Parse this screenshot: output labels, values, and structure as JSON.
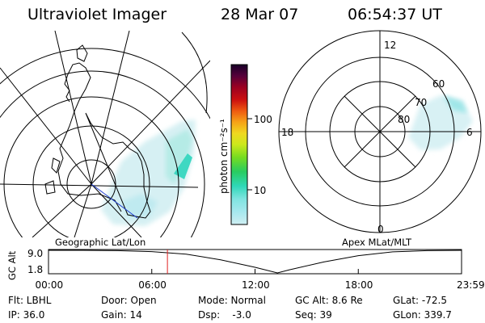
{
  "header": {
    "instrument": "Ultraviolet Imager",
    "date": "28 Mar 07",
    "time": "06:54:37 UT"
  },
  "left_panel": {
    "caption": "Geographic Lat/Lon"
  },
  "right_panel": {
    "caption": "Apex MLat/MLT",
    "mlt_labels": {
      "top": "12",
      "left": "18",
      "right": "6",
      "bottom": "0"
    },
    "lat_labels": [
      "60",
      "70",
      "80"
    ]
  },
  "colorbar": {
    "unit_label": "photon cm⁻²s⁻¹",
    "tick_labels": [
      "100",
      "10"
    ],
    "tick_values": [
      100,
      10
    ],
    "scale": "log",
    "colors": [
      "#cfeef2",
      "#7fe4e0",
      "#2fd8b8",
      "#28cc60",
      "#76dc20",
      "#cce81c",
      "#f0d820",
      "#f6a218",
      "#ee5a10",
      "#cc1010",
      "#9a0022",
      "#55003a",
      "#180028"
    ]
  },
  "altitude_chart": {
    "axis_label": "GC Alt",
    "y_ticks": [
      "9.0",
      "1.8"
    ],
    "y_min": 1.8,
    "y_max": 9.0,
    "x_ticks": [
      "00:00",
      "06:00",
      "12:00",
      "18:00",
      "23:59"
    ],
    "x_tick_hours": [
      0,
      6,
      12,
      18,
      24
    ],
    "current_hour": 6.91,
    "curve_hours": [
      0,
      2,
      4,
      6,
      8,
      10,
      12,
      13.3,
      14,
      16,
      18,
      20,
      22,
      24
    ],
    "curve_alt": [
      9.0,
      9.0,
      8.9,
      8.6,
      7.8,
      6.0,
      3.6,
      1.8,
      2.8,
      5.3,
      7.3,
      8.5,
      8.9,
      9.0
    ]
  },
  "info": {
    "flt": "Flt: LBHL",
    "ip": "IP: 36.0",
    "door": "Door: Open",
    "gain": "Gain: 14",
    "mode": "Mode: Normal",
    "dsp": "Dsp:    -3.0",
    "gc_alt": "GC Alt: 8.6 Re",
    "seq": "Seq: 39",
    "glat": "GLat: -72.5",
    "glon": "GLon: 339.7"
  }
}
